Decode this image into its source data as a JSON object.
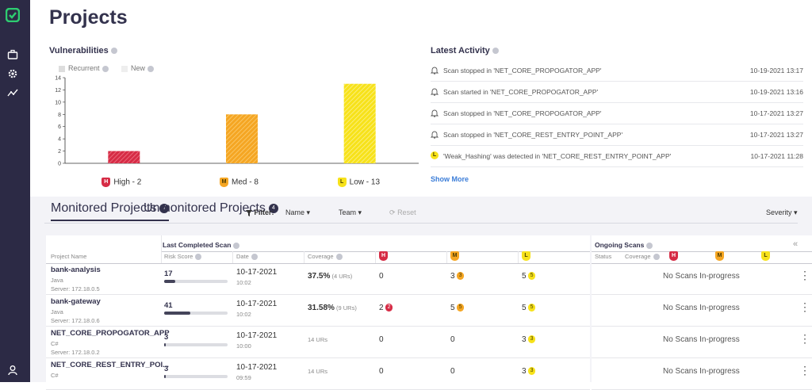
{
  "sidebar": {
    "items": [
      "briefcase-icon",
      "gear-icon",
      "activity-icon"
    ]
  },
  "page": {
    "title": "Projects"
  },
  "vulnerabilities": {
    "title": "Vulnerabilities",
    "legend": {
      "recurrent": "Recurrent",
      "new": "New"
    },
    "chart_data": {
      "type": "bar",
      "categories": [
        "High - 2",
        "Med - 8",
        "Low - 13"
      ],
      "values": [
        2,
        8,
        13
      ],
      "colors": [
        "#d62b45",
        "#f5a623",
        "#f7e21a"
      ],
      "ylim": [
        0,
        14
      ],
      "yticks": [
        "14",
        "12",
        "10",
        "8",
        "6",
        "4",
        "2",
        "0"
      ],
      "icons": [
        "H",
        "M",
        "L"
      ]
    }
  },
  "activity": {
    "title": "Latest Activity",
    "rows": [
      {
        "text": "Scan stopped in 'NET_CORE_PROPOGATOR_APP'",
        "time": "10-19-2021 13:17",
        "icon": "bell-icon"
      },
      {
        "text": "Scan started in 'NET_CORE_PROPOGATOR_APP'",
        "time": "10-19-2021 13:16",
        "icon": "bell-icon"
      },
      {
        "text": "Scan stopped in 'NET_CORE_PROPOGATOR_APP'",
        "time": "10-17-2021 13:27",
        "icon": "bell-icon"
      },
      {
        "text": "Scan stopped in 'NET_CORE_REST_ENTRY_POINT_APP'",
        "time": "10-17-2021 13:27",
        "icon": "bell-icon"
      },
      {
        "text": "'Weak_Hashing' was detected in 'NET_CORE_REST_ENTRY_POINT_APP'",
        "time": "10-17-2021 11:28",
        "icon": "low-severity-icon"
      }
    ],
    "show_more": "Show More"
  },
  "tabs": {
    "monitored": {
      "label": "Monitored Projects",
      "count": "7"
    },
    "unmonitored": {
      "label": "Unmonitored Projects",
      "count": "4"
    }
  },
  "filters": {
    "label": "Filter:",
    "name": "Name",
    "team": "Team",
    "reset": "Reset",
    "severity": "Severity"
  },
  "table": {
    "group_header": "Last Completed Scan",
    "headers": {
      "project_name": "Project Name",
      "risk_score": "Risk Score",
      "date": "Date",
      "coverage": "Coverage",
      "high": "H",
      "med": "M",
      "low": "L"
    },
    "rows": [
      {
        "name": "bank-analysis",
        "lang": "Java",
        "server": "Server: 172.18.0.5",
        "risk": "17",
        "risk_fraction": 0.17,
        "date": "10-17-2021",
        "time": "10:02",
        "coverage": "37.5%",
        "coverage_detail": "(4 URs)",
        "high": "0",
        "high_new": "",
        "med": "3",
        "med_new": "3",
        "low": "5",
        "low_new": "5"
      },
      {
        "name": "bank-gateway",
        "lang": "Java",
        "server": "Server: 172.18.0.6",
        "risk": "41",
        "risk_fraction": 0.41,
        "date": "10-17-2021",
        "time": "10:02",
        "coverage": "31.58%",
        "coverage_detail": "(9 URs)",
        "high": "2",
        "high_new": "2",
        "med": "5",
        "med_new": "5",
        "low": "5",
        "low_new": "5"
      },
      {
        "name": "NET_CORE_PROPOGATOR_APP",
        "lang": "C#",
        "server": "Server: 172.18.0.2",
        "risk": "3",
        "risk_fraction": 0.03,
        "date": "10-17-2021",
        "time": "10:00",
        "coverage": "",
        "coverage_detail": "14 URs",
        "high": "0",
        "high_new": "",
        "med": "0",
        "med_new": "",
        "low": "3",
        "low_new": "3"
      },
      {
        "name": "NET_CORE_REST_ENTRY_POI...",
        "lang": "C#",
        "server": "",
        "risk": "3",
        "risk_fraction": 0.03,
        "date": "10-17-2021",
        "time": "09:59",
        "coverage": "",
        "coverage_detail": "14 URs",
        "high": "0",
        "high_new": "",
        "med": "0",
        "med_new": "",
        "low": "3",
        "low_new": "3"
      }
    ]
  },
  "ongoing": {
    "title": "Ongoing Scans",
    "status": "Status",
    "coverage": "Coverage",
    "collapse": "«",
    "empty": "No Scans In-progress"
  }
}
